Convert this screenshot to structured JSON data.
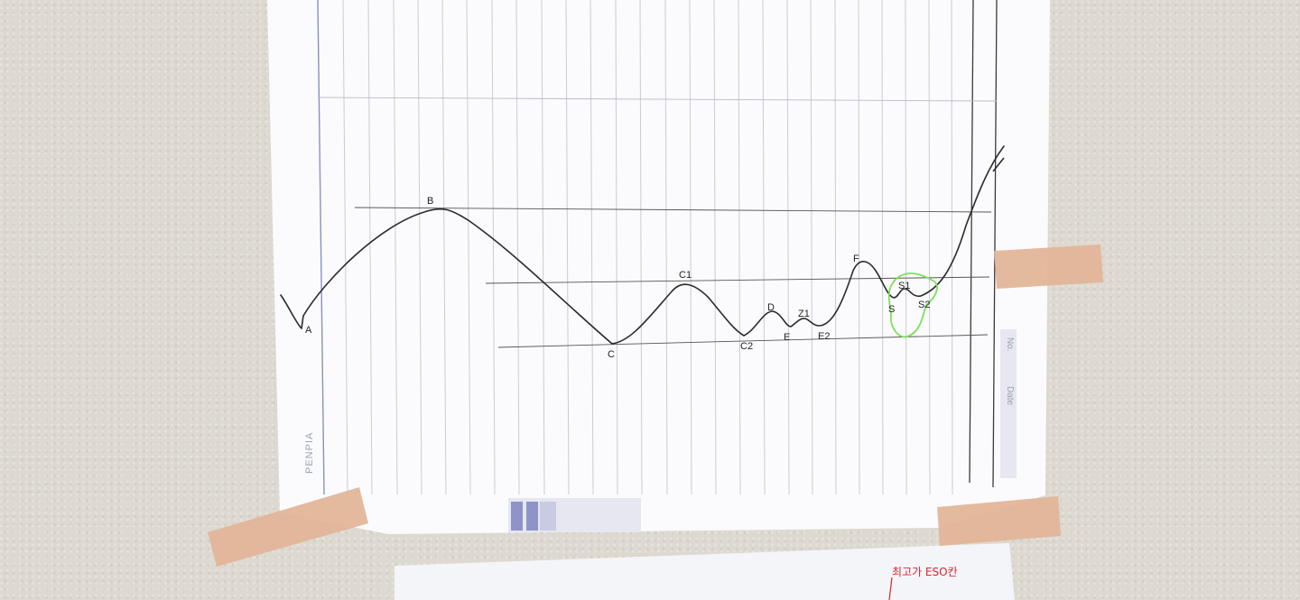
{
  "brand": "PENPIA",
  "margin_labels": {
    "no": "No.",
    "date": "Date"
  },
  "note_text": "최고가 ESO칸",
  "point_labels": {
    "a": "A",
    "b": "B",
    "c": "C",
    "c1": "C1",
    "c2": "C2",
    "d": "D",
    "e": "E",
    "z1": "Z1",
    "e2": "E2",
    "f": "F",
    "s": "S",
    "s1": "S1",
    "s2": "S2"
  },
  "colors": {
    "wall": "#ddd9d0",
    "paper": "#fbfbfd",
    "grid_line": "#c9cbd6",
    "pencil": "#2b2b2b",
    "highlight": "#7ee05a",
    "tape": "#e2b497",
    "tab": "#8e93c8",
    "note_ink": "#d8262f"
  }
}
